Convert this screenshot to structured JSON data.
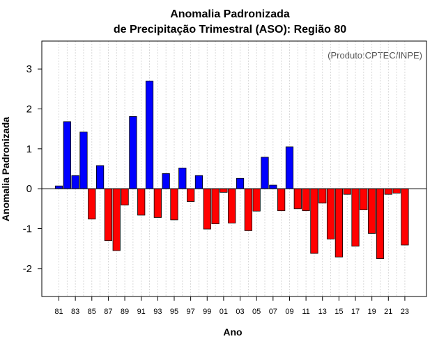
{
  "chart_data": {
    "type": "bar",
    "title": "Anomalia Padronizada",
    "subtitle": "de Precipitação Trimestral (ASO): Região 80",
    "xlabel": "Ano",
    "ylabel": "Anomalia Padronizada",
    "annotation": "(Produto:CPTEC/INPE)",
    "ylim": [
      -2.7,
      3.7
    ],
    "yticks": [
      -2,
      -1,
      0,
      1,
      2,
      3
    ],
    "grid": true,
    "colors": {
      "positive": "#0000ff",
      "negative": "#ff0000",
      "edge": "#000000"
    },
    "categories": [
      "81",
      "82",
      "83",
      "84",
      "85",
      "86",
      "87",
      "88",
      "89",
      "90",
      "91",
      "92",
      "93",
      "94",
      "95",
      "96",
      "97",
      "98",
      "99",
      "00",
      "01",
      "02",
      "03",
      "04",
      "05",
      "06",
      "07",
      "08",
      "09",
      "10",
      "11",
      "12",
      "13",
      "14",
      "15",
      "16",
      "17",
      "18",
      "19",
      "20",
      "21",
      "22",
      "23"
    ],
    "values": [
      0.07,
      1.68,
      0.33,
      1.42,
      -0.76,
      0.58,
      -1.3,
      -1.55,
      -0.41,
      1.81,
      -0.66,
      2.7,
      -0.72,
      0.38,
      -0.78,
      0.52,
      -0.32,
      0.33,
      -1.01,
      -0.88,
      -0.09,
      -0.86,
      0.26,
      -1.05,
      -0.56,
      0.79,
      0.09,
      -0.55,
      1.05,
      -0.5,
      -0.55,
      -1.62,
      -0.36,
      -1.26,
      -1.71,
      -0.14,
      -1.44,
      -0.53,
      -1.12,
      -1.75,
      -0.14,
      -0.11,
      -1.41
    ],
    "xtick_labels": [
      "81",
      "83",
      "85",
      "87",
      "89",
      "91",
      "93",
      "95",
      "97",
      "99",
      "01",
      "03",
      "05",
      "07",
      "09",
      "11",
      "13",
      "15",
      "17",
      "19",
      "21",
      "23"
    ]
  }
}
